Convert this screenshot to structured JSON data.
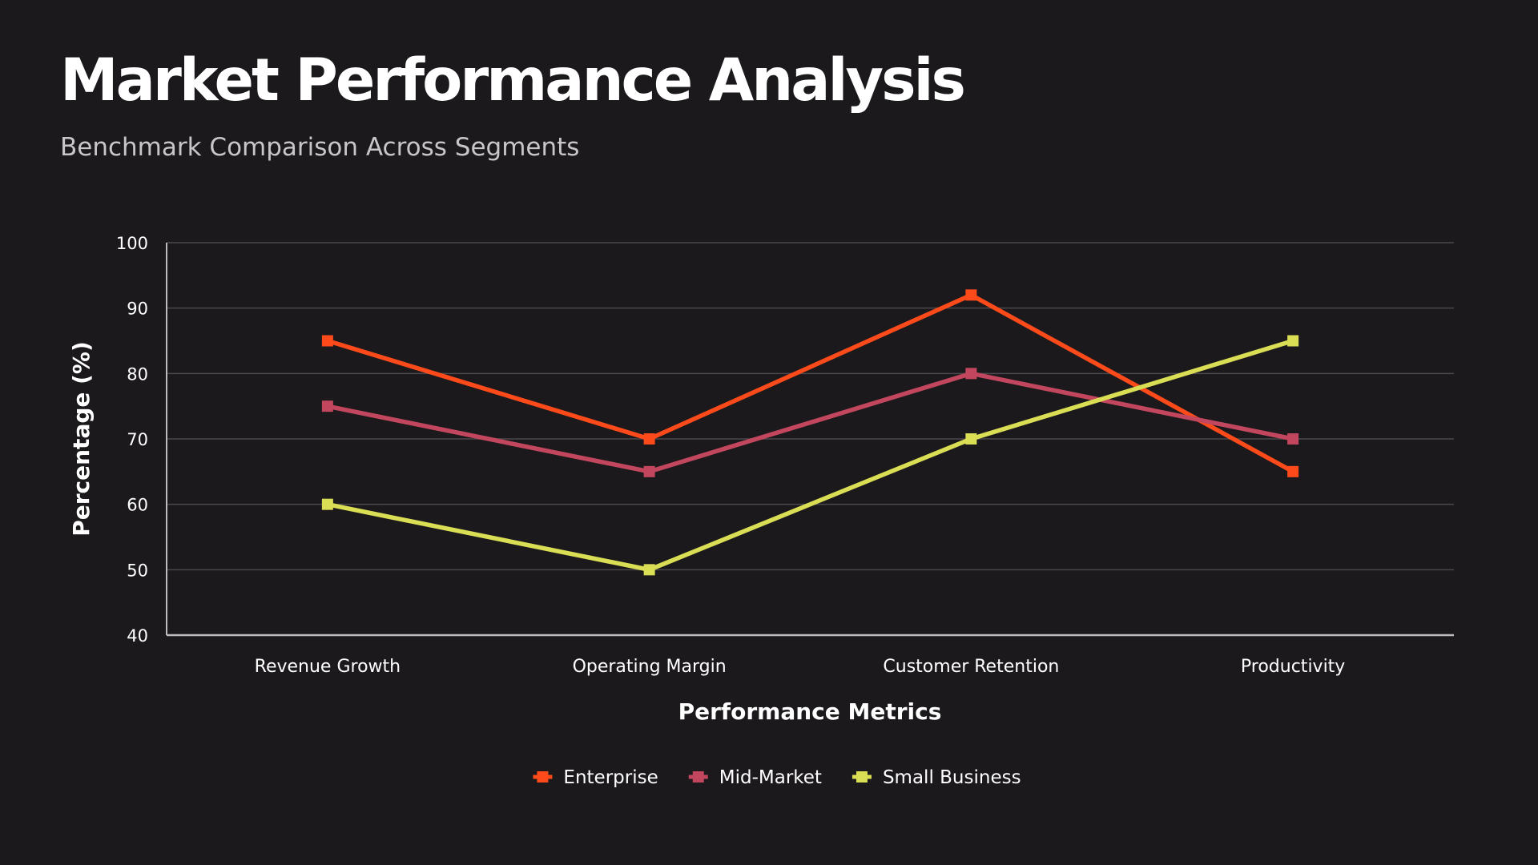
{
  "header": {
    "title": "Market Performance Analysis",
    "subtitle": "Benchmark Comparison Across Segments"
  },
  "colors": {
    "background": "#1b191c",
    "grid": "#4a484b",
    "axis": "#bdbbbe",
    "text": "#ffffff"
  },
  "chart_data": {
    "type": "line",
    "title": "Market Performance Analysis",
    "subtitle": "Benchmark Comparison Across Segments",
    "xlabel": "Performance Metrics",
    "ylabel": "Percentage (%)",
    "categories": [
      "Revenue Growth",
      "Operating Margin",
      "Customer Retention",
      "Productivity"
    ],
    "ylim": [
      40,
      100
    ],
    "yticks": [
      40,
      50,
      60,
      70,
      80,
      90,
      100
    ],
    "grid": true,
    "legend_position": "bottom-center",
    "series": [
      {
        "name": "Enterprise",
        "color": "#fc4a1a",
        "marker": "square",
        "values": [
          85,
          70,
          92,
          65
        ]
      },
      {
        "name": "Mid-Market",
        "color": "#c2475e",
        "marker": "square",
        "values": [
          75,
          65,
          80,
          70
        ]
      },
      {
        "name": "Small Business",
        "color": "#d9de55",
        "marker": "square",
        "values": [
          60,
          50,
          70,
          85
        ]
      }
    ]
  }
}
